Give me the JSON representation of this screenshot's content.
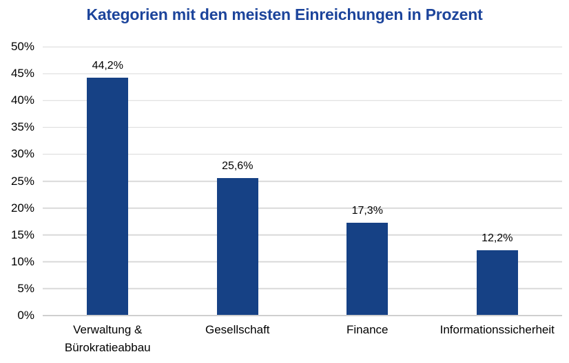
{
  "chart_data": {
    "type": "bar",
    "title": "Kategorien mit den meisten Einreichungen in Prozent",
    "categories": [
      "Verwaltung & Bürokratieabbau",
      "Gesellschaft",
      "Finance",
      "Informationssicherheit"
    ],
    "values": [
      44.2,
      25.6,
      17.3,
      12.2
    ],
    "value_labels": [
      "44,2%",
      "25,6%",
      "17,3%",
      "12,2%"
    ],
    "xlabel": "",
    "ylabel": "",
    "ylim": [
      0,
      50
    ],
    "ytick_step": 5,
    "ytick_labels": [
      "0%",
      "5%",
      "10%",
      "15%",
      "20%",
      "25%",
      "30%",
      "35%",
      "40%",
      "45%",
      "50%"
    ],
    "grid": true,
    "legend": false,
    "colors": {
      "bar": "#164185",
      "title": "#1C449B",
      "gridline": "#D9D9D9",
      "axis_line": "#CFCFCF",
      "text": "#000000"
    }
  }
}
